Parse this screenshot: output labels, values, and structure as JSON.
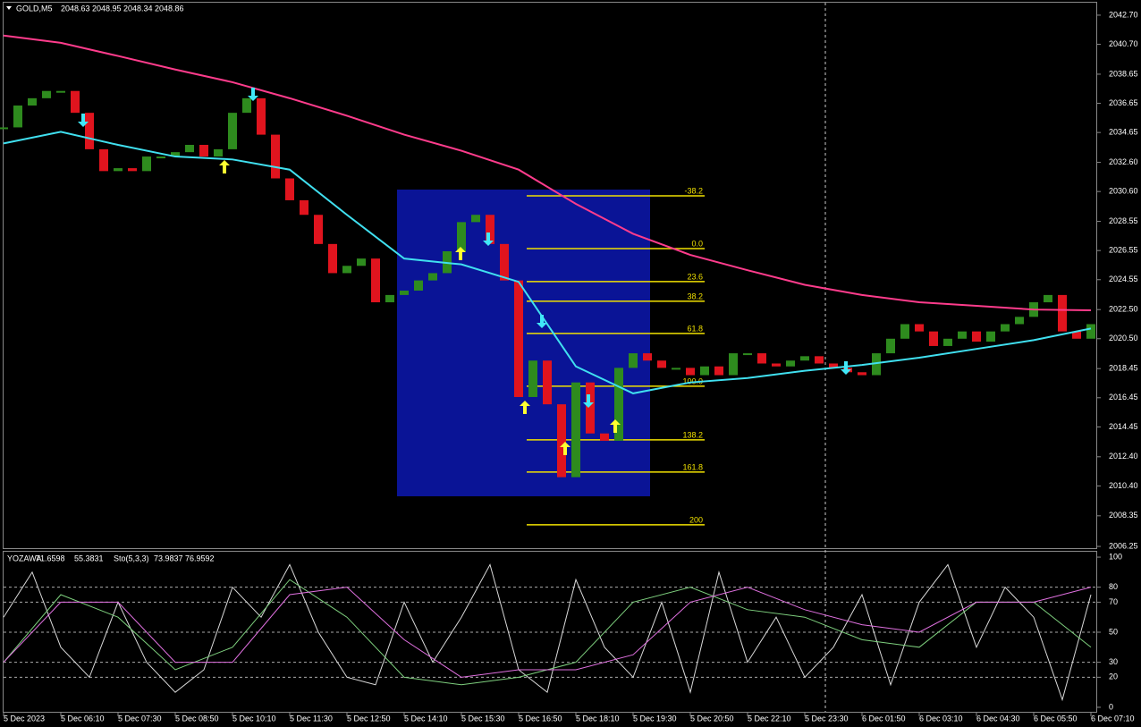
{
  "header": {
    "symbol": "GOLD,M5",
    "quote": [
      2048.63,
      2048.95,
      2048.34,
      2048.86
    ]
  },
  "indicator_header": {
    "name": "YOZAWA",
    "values": [
      71.6598,
      55.3831
    ],
    "stoch_name": "Sto(5,3,3)",
    "stoch_values": [
      73.9837,
      76.9592
    ]
  },
  "chart_data": [
    {
      "type": "candlestick",
      "x_labels": [
        "5 Dec 2023",
        "5 Dec 06:10",
        "5 Dec 07:30",
        "5 Dec 08:50",
        "5 Dec 10:10",
        "5 Dec 11:30",
        "5 Dec 12:50",
        "5 Dec 14:10",
        "5 Dec 15:30",
        "5 Dec 16:50",
        "5 Dec 18:10",
        "5 Dec 19:30",
        "5 Dec 20:50",
        "5 Dec 22:10",
        "5 Dec 23:30",
        "6 Dec 01:50",
        "6 Dec 03:10",
        "6 Dec 04:30",
        "6 Dec 05:50",
        "6 Dec 07:10"
      ],
      "closes": [
        2035.0,
        2036.5,
        2037.0,
        2037.5,
        2037.5,
        2036.0,
        2033.5,
        2032.0,
        2032.2,
        2032.0,
        2033.0,
        2033.0,
        2033.3,
        2033.8,
        2033.0,
        2033.5,
        2036.0,
        2037.0,
        2034.5,
        2031.5,
        2030.0,
        2029.0,
        2027.0,
        2025.0,
        2025.5,
        2026.0,
        2023.0,
        2023.5,
        2023.8,
        2024.5,
        2025.0,
        2026.5,
        2028.5,
        2029.0,
        2027.0,
        2024.5,
        2016.5,
        2019.0,
        2016.0,
        2011.0,
        2017.5,
        2014.0,
        2013.5,
        2018.5,
        2019.5,
        2019.0,
        2018.5,
        2018.5,
        2018.0,
        2018.6,
        2018.0,
        2019.5,
        2019.5,
        2018.8,
        2018.6,
        2019.0,
        2019.3,
        2018.8,
        2018.5,
        2018.2,
        2018.0,
        2019.5,
        2020.5,
        2021.5,
        2021.0,
        2020.0,
        2020.5,
        2021.0,
        2020.3,
        2021.0,
        2021.5,
        2022.0,
        2023.0,
        2023.5,
        2021.0,
        2020.5,
        2021.5
      ],
      "up_color": "#2e8b1e",
      "down_color": "#e0141e",
      "series": [
        {
          "color": "#ff3c8c",
          "values": [
            2041.3,
            2040.8,
            2039.9,
            2038.97,
            2038.1,
            2037.0,
            2035.8,
            2034.5,
            2033.4,
            2032.1,
            2029.75,
            2027.7,
            2026.25,
            2025.2,
            2024.2,
            2023.5,
            2023.0,
            2022.76,
            2022.5,
            2022.45
          ]
        },
        {
          "color": "#40e0f0",
          "values": [
            2033.9,
            2034.7,
            2033.8,
            2033.0,
            2032.8,
            2032.1,
            2029.0,
            2026.0,
            2025.6,
            2024.4,
            2018.6,
            2016.75,
            2017.5,
            2017.8,
            2018.3,
            2018.7,
            2019.2,
            2019.8,
            2020.4,
            2021.2
          ]
        }
      ],
      "fib_levels": [
        {
          "label": "-38.2",
          "price": 2030.3
        },
        {
          "label": "0.0",
          "price": 2026.68
        },
        {
          "label": "23.6",
          "price": 2024.42
        },
        {
          "label": "38.2",
          "price": 2023.07
        },
        {
          "label": "61.8",
          "price": 2020.86
        },
        {
          "label": "100.0",
          "price": 2017.24
        },
        {
          "label": "138.2",
          "price": 2013.56
        },
        {
          "label": "161.8",
          "price": 2011.35
        },
        {
          "label": "200",
          "price": 2007.73
        }
      ],
      "ylim": [
        2006.13,
        2043.74
      ],
      "yticks": [
        {
          "value": 2042.7,
          "label": "2042.70"
        },
        {
          "value": 2040.7,
          "label": "2040.70"
        },
        2038.65,
        2036.65,
        2034.65,
        {
          "value": 2032.6,
          "label": "2032.60"
        },
        {
          "value": 2030.6,
          "label": "2030.60"
        },
        2028.55,
        2026.55,
        2024.55,
        {
          "value": 2022.5,
          "label": "2022.50"
        },
        {
          "value": 2020.5,
          "label": "2020.50"
        },
        2018.45,
        2016.45,
        2014.45,
        {
          "value": 2012.4,
          "label": "2012.40"
        },
        {
          "value": 2010.4,
          "label": "2010.40"
        },
        2008.35,
        2006.25
      ]
    },
    {
      "type": "line",
      "ylim": [
        -3.6,
        103.6
      ],
      "yticks": [
        100,
        80,
        70,
        50,
        30,
        20,
        0
      ],
      "levels": [
        80,
        70,
        50,
        30,
        20
      ],
      "series": [
        {
          "color": "#d8d8d8",
          "values": [
            60,
            90,
            40,
            20,
            70,
            30,
            10,
            25,
            80,
            60,
            95,
            50,
            20,
            15,
            70,
            30,
            60,
            95,
            25,
            10,
            85,
            40,
            20,
            70,
            10,
            90,
            30,
            60,
            20,
            40,
            75,
            15,
            70,
            95,
            40,
            80,
            60,
            5,
            75
          ]
        },
        {
          "color": "#7ed07e",
          "values": [
            30,
            75,
            60,
            25,
            40,
            85,
            60,
            20,
            15,
            20,
            30,
            70,
            80,
            65,
            60,
            45,
            40,
            70,
            70,
            40
          ]
        },
        {
          "color": "#e070e0",
          "values": [
            30,
            70,
            70,
            30,
            30,
            75,
            80,
            45,
            20,
            25,
            25,
            35,
            70,
            80,
            65,
            55,
            50,
            70,
            70,
            80
          ]
        }
      ]
    }
  ]
}
